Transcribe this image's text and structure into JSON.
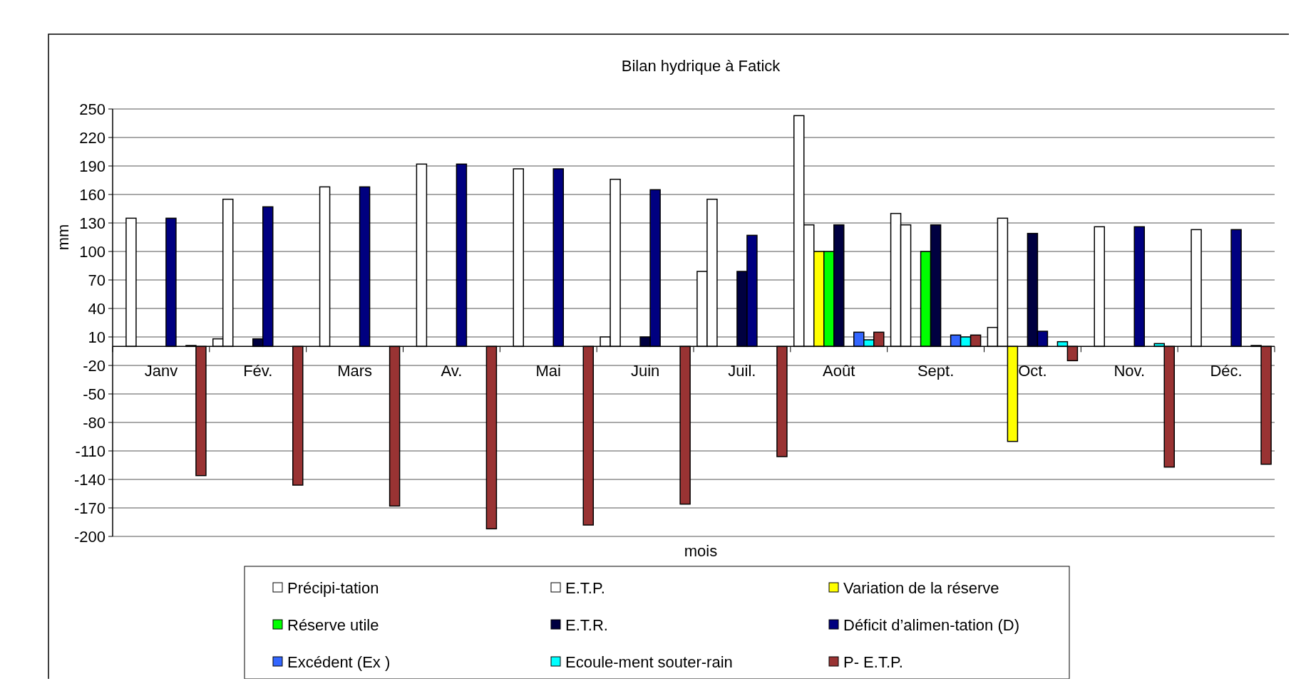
{
  "chart_data": {
    "type": "bar",
    "title": "Bilan hydrique à Fatick",
    "xlabel": "mois",
    "ylabel": "mm",
    "categories": [
      "Janv",
      "Fév.",
      "Mars",
      "Av.",
      "Mai",
      "Juin",
      "Juil.",
      "Août",
      "Sept.",
      "Oct.",
      "Nov.",
      "Déc."
    ],
    "series": [
      {
        "name": "Précipi-tation",
        "color": "#ffffff",
        "values": [
          null,
          8,
          null,
          null,
          null,
          10,
          79,
          243,
          140,
          20,
          null,
          null
        ]
      },
      {
        "name": "E.T.P.",
        "color": "#ffffff",
        "values": [
          135,
          155,
          168,
          192,
          187,
          176,
          155,
          128,
          128,
          135,
          126,
          123
        ]
      },
      {
        "name": "Variation de la réserve",
        "color": "#ffff00",
        "values": [
          null,
          null,
          null,
          null,
          null,
          null,
          null,
          100,
          null,
          -100,
          null,
          null
        ]
      },
      {
        "name": "Réserve utile",
        "color": "#00ff00",
        "values": [
          null,
          null,
          null,
          null,
          null,
          null,
          null,
          100,
          100,
          null,
          null,
          null
        ]
      },
      {
        "name": "E.T.R.",
        "color": "#000040",
        "values": [
          null,
          8,
          null,
          null,
          null,
          10,
          79,
          128,
          128,
          119,
          null,
          null
        ]
      },
      {
        "name": "Déficit d’alimen-tation (D)",
        "color": "#000080",
        "values": [
          135,
          147,
          168,
          192,
          187,
          165,
          117,
          null,
          null,
          16,
          126,
          123
        ]
      },
      {
        "name": "Excédent (Ex )",
        "color": "#3366ff",
        "values": [
          null,
          null,
          null,
          null,
          null,
          null,
          null,
          15,
          12,
          null,
          null,
          null
        ]
      },
      {
        "name": "Ecoule-ment souter-rain",
        "color": "#00ffff",
        "values": [
          1,
          null,
          null,
          null,
          null,
          null,
          null,
          7,
          10,
          5,
          3,
          1
        ]
      },
      {
        "name": "P- E.T.P.",
        "color": "#993333",
        "values": [
          -136,
          -146,
          -168,
          -192,
          -188,
          -166,
          -116,
          15,
          12,
          -15,
          -127,
          -124
        ]
      }
    ],
    "ylim": [
      -200,
      250
    ],
    "yticks": [
      -200,
      -170,
      -140,
      -110,
      -80,
      -50,
      -20,
      10,
      40,
      70,
      100,
      130,
      160,
      190,
      220,
      250
    ],
    "grid": "y",
    "legend": "bottom"
  }
}
